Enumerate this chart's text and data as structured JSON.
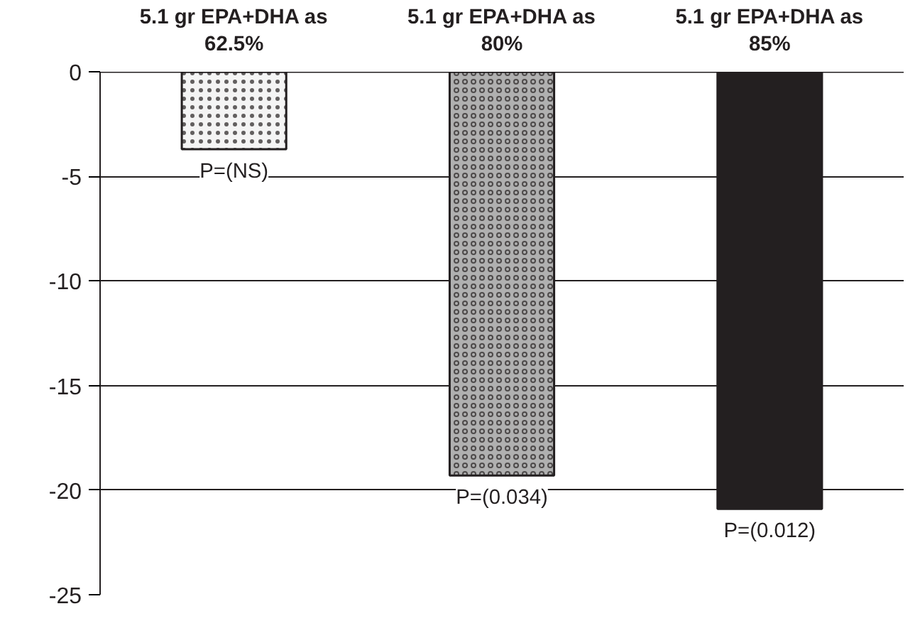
{
  "chart_data": {
    "type": "bar",
    "categories": [
      "5.1 gr EPA+DHA as 62.5%",
      "5.1 gr EPA+DHA as 80%",
      "5.1 gr EPA+DHA as 85%"
    ],
    "values": [
      -3.7,
      -19.3,
      -20.9
    ],
    "colors": [
      "#f4f4f4",
      "#b0b0b0",
      "#231f20"
    ],
    "annotations": [
      {
        "text": "P=(NS)",
        "x": "5.1 gr EPA+DHA as 62.5%",
        "y": -3.7
      },
      {
        "text": "P=(0.034)",
        "x": "5.1 gr EPA+DHA as 80%",
        "y": -19.3
      },
      {
        "text": "P=(0.012)",
        "x": "5.1 gr EPA+DHA as 85%",
        "y": -20.9
      }
    ],
    "ylim": [
      -25,
      0
    ],
    "yticks": [
      0,
      -5,
      -10,
      -15,
      -20,
      -25
    ],
    "grid": "y"
  }
}
